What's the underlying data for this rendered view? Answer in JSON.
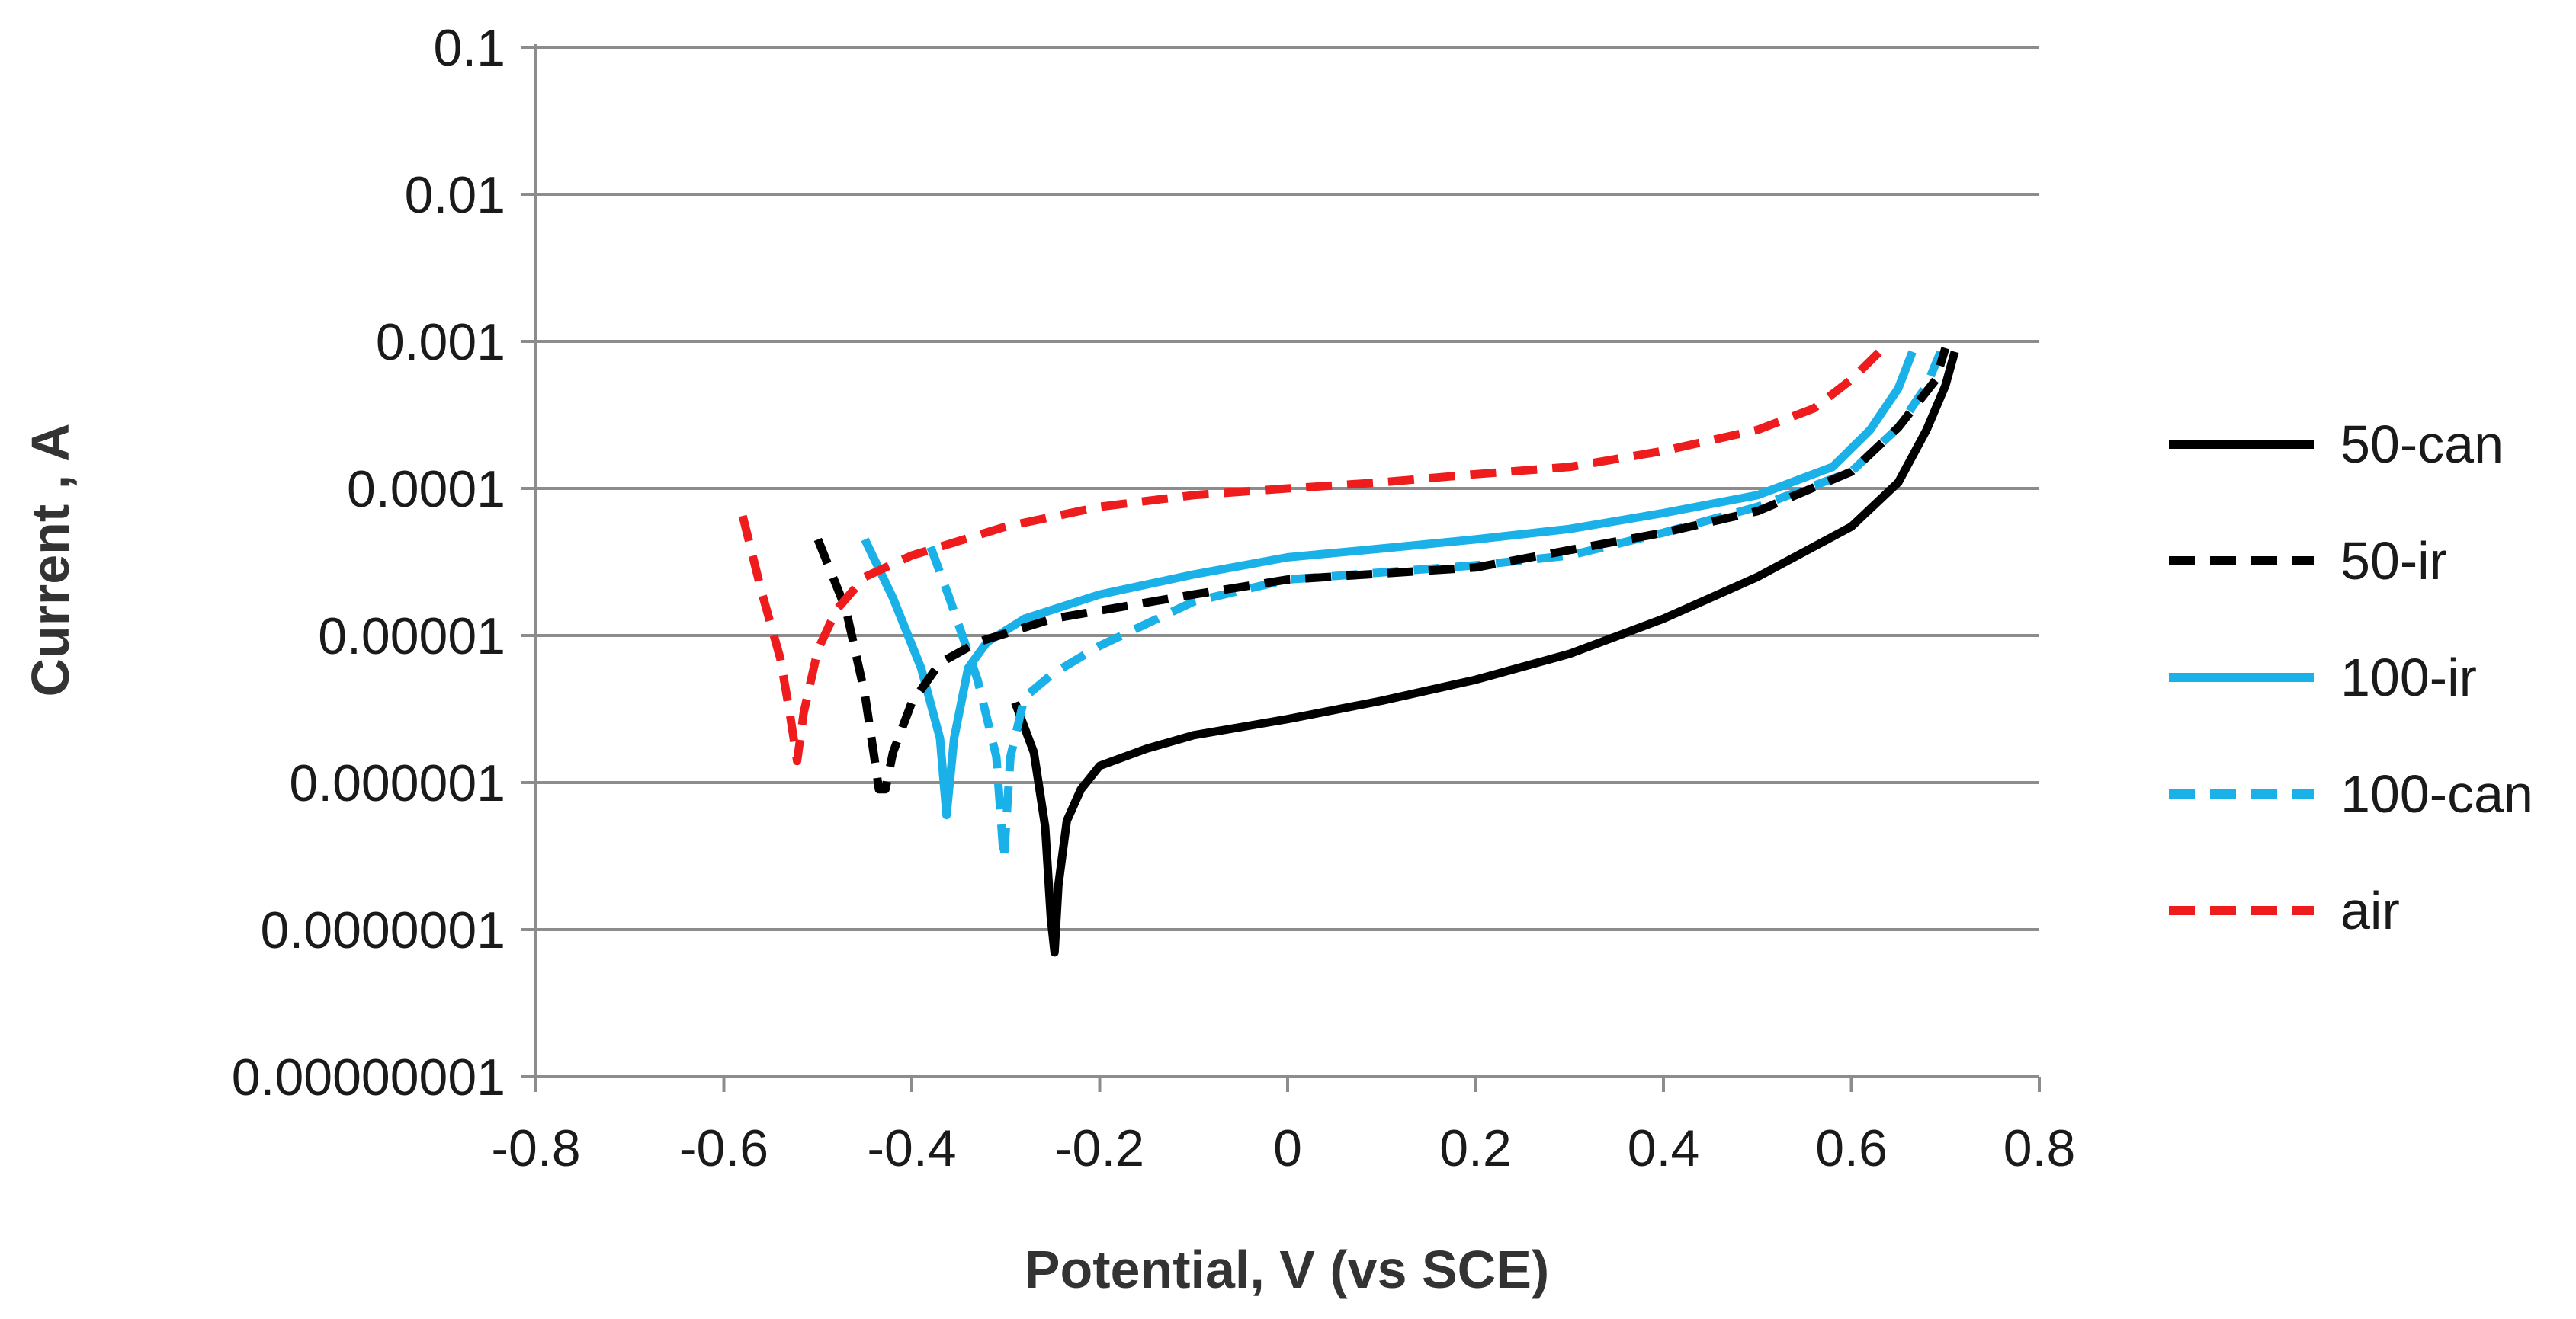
{
  "chart_data": {
    "type": "line",
    "title": "",
    "xlabel": "Potential, V (vs SCE)",
    "ylabel": "Current , A",
    "x_scale": "linear",
    "y_scale": "log",
    "xlim": [
      -0.8,
      0.8
    ],
    "ylim": [
      1e-08,
      0.1
    ],
    "grid": "horizontal",
    "legend_position": "right",
    "x_ticks": [
      -0.8,
      -0.6,
      -0.4,
      -0.2,
      0,
      0.2,
      0.4,
      0.6,
      0.8
    ],
    "x_tick_labels": [
      "-0.8",
      "-0.6",
      "-0.4",
      "-0.2",
      "0",
      "0.2",
      "0.4",
      "0.6",
      "0.8"
    ],
    "y_ticks": [
      0.1,
      0.01,
      0.001,
      0.0001,
      1e-05,
      1e-06,
      1e-07,
      1e-08
    ],
    "y_tick_labels": [
      "0.1",
      "0.01",
      "0.001",
      "0.0001",
      "0.00001",
      "0.000001",
      "0.0000001",
      "0.00000001"
    ],
    "series": [
      {
        "name": "50-can",
        "color": "#000000",
        "dash": "solid",
        "points": [
          [
            -0.29,
            3.5e-06
          ],
          [
            -0.27,
            1.6e-06
          ],
          [
            -0.258,
            5e-07
          ],
          [
            -0.252,
            1.2e-07
          ],
          [
            -0.248,
            7e-08
          ],
          [
            -0.244,
            2e-07
          ],
          [
            -0.235,
            5.5e-07
          ],
          [
            -0.22,
            9e-07
          ],
          [
            -0.2,
            1.3e-06
          ],
          [
            -0.15,
            1.7e-06
          ],
          [
            -0.1,
            2.1e-06
          ],
          [
            0.0,
            2.7e-06
          ],
          [
            0.1,
            3.6e-06
          ],
          [
            0.2,
            5e-06
          ],
          [
            0.3,
            7.5e-06
          ],
          [
            0.4,
            1.3e-05
          ],
          [
            0.5,
            2.5e-05
          ],
          [
            0.6,
            5.5e-05
          ],
          [
            0.65,
            0.00011
          ],
          [
            0.68,
            0.00025
          ],
          [
            0.7,
            0.0005
          ],
          [
            0.71,
            0.00085
          ]
        ]
      },
      {
        "name": "50-ir",
        "color": "#000000",
        "dash": "dashed",
        "points": [
          [
            -0.5,
            4.5e-05
          ],
          [
            -0.47,
            1.5e-05
          ],
          [
            -0.45,
            4e-06
          ],
          [
            -0.44,
            1.5e-06
          ],
          [
            -0.435,
            9e-07
          ],
          [
            -0.428,
            9e-07
          ],
          [
            -0.42,
            1.6e-06
          ],
          [
            -0.4,
            3.5e-06
          ],
          [
            -0.37,
            6.5e-06
          ],
          [
            -0.33,
            9e-06
          ],
          [
            -0.25,
            1.3e-05
          ],
          [
            -0.1,
            1.9e-05
          ],
          [
            0.0,
            2.4e-05
          ],
          [
            0.2,
            2.9e-05
          ],
          [
            0.4,
            5e-05
          ],
          [
            0.5,
            7e-05
          ],
          [
            0.6,
            0.00013
          ],
          [
            0.65,
            0.00026
          ],
          [
            0.69,
            0.00055
          ],
          [
            0.7,
            0.0009
          ]
        ]
      },
      {
        "name": "100-ir",
        "color": "#1ab0e8",
        "dash": "solid",
        "points": [
          [
            -0.45,
            4.5e-05
          ],
          [
            -0.42,
            1.8e-05
          ],
          [
            -0.39,
            6e-06
          ],
          [
            -0.37,
            2e-06
          ],
          [
            -0.363,
            6e-07
          ],
          [
            -0.355,
            2e-06
          ],
          [
            -0.34,
            6e-06
          ],
          [
            -0.32,
            9e-06
          ],
          [
            -0.28,
            1.3e-05
          ],
          [
            -0.2,
            1.9e-05
          ],
          [
            -0.1,
            2.6e-05
          ],
          [
            0.0,
            3.4e-05
          ],
          [
            0.1,
            3.9e-05
          ],
          [
            0.2,
            4.5e-05
          ],
          [
            0.3,
            5.3e-05
          ],
          [
            0.4,
            6.8e-05
          ],
          [
            0.5,
            9e-05
          ],
          [
            0.58,
            0.00014
          ],
          [
            0.62,
            0.00025
          ],
          [
            0.65,
            0.00048
          ],
          [
            0.665,
            0.00085
          ]
        ]
      },
      {
        "name": "100-can",
        "color": "#1ab0e8",
        "dash": "dashed",
        "points": [
          [
            -0.38,
            4e-05
          ],
          [
            -0.36,
            1.8e-05
          ],
          [
            -0.33,
            5e-06
          ],
          [
            -0.31,
            1.5e-06
          ],
          [
            -0.302,
            3e-07
          ],
          [
            -0.295,
            1.5e-06
          ],
          [
            -0.28,
            3.8e-06
          ],
          [
            -0.25,
            5.5e-06
          ],
          [
            -0.2,
            8.5e-06
          ],
          [
            -0.1,
            1.7e-05
          ],
          [
            0.0,
            2.4e-05
          ],
          [
            0.2,
            3e-05
          ],
          [
            0.3,
            3.5e-05
          ],
          [
            0.4,
            5e-05
          ],
          [
            0.5,
            7.5e-05
          ],
          [
            0.6,
            0.00013
          ],
          [
            0.65,
            0.00026
          ],
          [
            0.68,
            0.0005
          ],
          [
            0.695,
            0.00085
          ]
        ]
      },
      {
        "name": "air",
        "color": "#ee1c1c",
        "dash": "dashed",
        "points": [
          [
            -0.58,
            6.5e-05
          ],
          [
            -0.56,
            2e-05
          ],
          [
            -0.54,
            7e-06
          ],
          [
            -0.53,
            3e-06
          ],
          [
            -0.522,
            1.4e-06
          ],
          [
            -0.515,
            3e-06
          ],
          [
            -0.5,
            8e-06
          ],
          [
            -0.48,
            1.5e-05
          ],
          [
            -0.45,
            2.5e-05
          ],
          [
            -0.4,
            3.5e-05
          ],
          [
            -0.3,
            5.5e-05
          ],
          [
            -0.2,
            7.5e-05
          ],
          [
            -0.1,
            9e-05
          ],
          [
            0.0,
            0.0001
          ],
          [
            0.1,
            0.00011
          ],
          [
            0.2,
            0.000125
          ],
          [
            0.3,
            0.00014
          ],
          [
            0.4,
            0.00018
          ],
          [
            0.5,
            0.00025
          ],
          [
            0.56,
            0.00035
          ],
          [
            0.6,
            0.00055
          ],
          [
            0.63,
            0.00085
          ]
        ]
      }
    ]
  }
}
